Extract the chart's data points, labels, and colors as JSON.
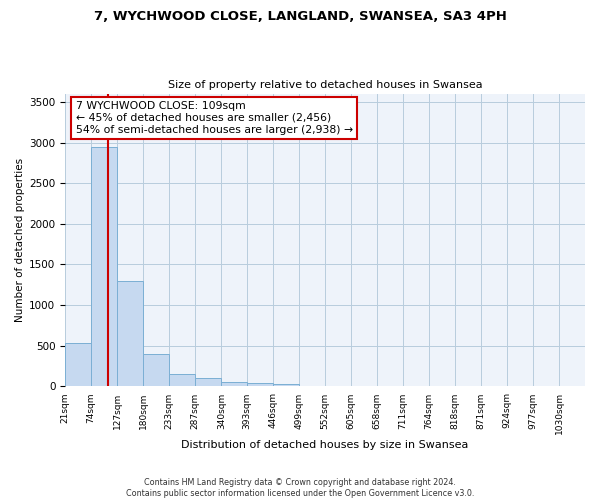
{
  "title_line1": "7, WYCHWOOD CLOSE, LANGLAND, SWANSEA, SA3 4PH",
  "title_line2": "Size of property relative to detached houses in Swansea",
  "xlabel": "Distribution of detached houses by size in Swansea",
  "ylabel": "Number of detached properties",
  "annotation_line1": "7 WYCHWOOD CLOSE: 109sqm",
  "annotation_line2": "← 45% of detached houses are smaller (2,456)",
  "annotation_line3": "54% of semi-detached houses are larger (2,938) →",
  "property_size": 109,
  "bin_edges": [
    21,
    74,
    127,
    180,
    233,
    287,
    340,
    393,
    446,
    499,
    552,
    605,
    658,
    711,
    764,
    818,
    871,
    924,
    977,
    1030,
    1083
  ],
  "bar_heights": [
    530,
    2950,
    1300,
    400,
    150,
    100,
    50,
    40,
    20,
    5,
    0,
    0,
    0,
    0,
    0,
    0,
    0,
    0,
    0,
    0
  ],
  "bar_color": "#c6d9f0",
  "bar_edge_color": "#7bafd4",
  "vline_color": "#cc0000",
  "vline_x": 109,
  "annotation_box_color": "#cc0000",
  "grid_color": "#b8ccdd",
  "background_color": "#eef3fa",
  "ylim": [
    0,
    3600
  ],
  "yticks": [
    0,
    500,
    1000,
    1500,
    2000,
    2500,
    3000,
    3500
  ],
  "footer_line1": "Contains HM Land Registry data © Crown copyright and database right 2024.",
  "footer_line2": "Contains public sector information licensed under the Open Government Licence v3.0."
}
